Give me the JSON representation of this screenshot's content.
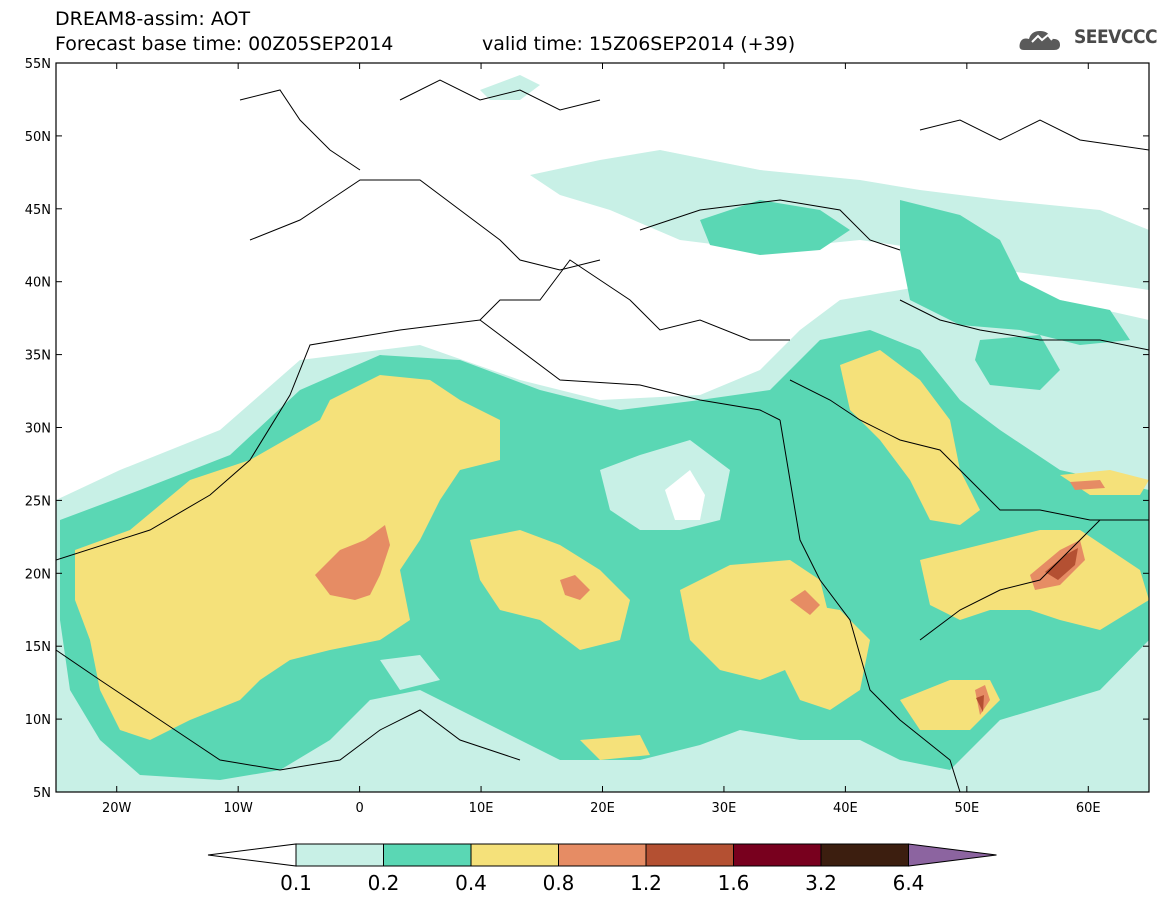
{
  "header": {
    "title": "DREAM8-assim: AOT",
    "forecast_base": "Forecast base time: 00Z05SEP2014",
    "valid_time": "valid time: 15Z06SEP2014 (+39)",
    "logo_text": "SEEVCCC"
  },
  "axes": {
    "lat_labels": [
      "55N",
      "50N",
      "45N",
      "40N",
      "35N",
      "30N",
      "25N",
      "20N",
      "15N",
      "10N",
      "5N"
    ],
    "lon_labels": [
      "20W",
      "10W",
      "0",
      "10E",
      "20E",
      "30E",
      "40E",
      "50E",
      "60E"
    ]
  },
  "colorbar": {
    "labels": [
      "0.1",
      "0.2",
      "0.4",
      "0.8",
      "1.2",
      "1.6",
      "3.2",
      "6.4"
    ],
    "colors": [
      "#ffffff",
      "#c8f0e6",
      "#5ad7b4",
      "#f5e17a",
      "#e68c64",
      "#b45032",
      "#78001e",
      "#3c1e0f",
      "#8c64a0"
    ]
  },
  "map": {
    "lon_range": [
      -25,
      65
    ],
    "lat_range": [
      5,
      55
    ]
  }
}
